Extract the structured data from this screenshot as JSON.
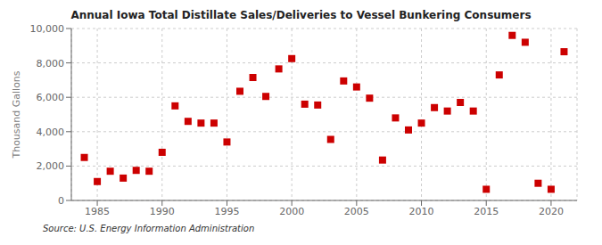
{
  "chart_data": {
    "type": "scatter",
    "title": "Annual Iowa Total Distillate Sales/Deliveries to Vessel Bunkering Consumers",
    "ylabel": "Thousand Gallons",
    "annotations": [
      "Source: U.S. Energy Information Administration"
    ],
    "x": [
      1984,
      1985,
      1986,
      1987,
      1988,
      1989,
      1990,
      1991,
      1992,
      1993,
      1994,
      1995,
      1996,
      1997,
      1998,
      1999,
      2000,
      2001,
      2002,
      2003,
      2004,
      2005,
      2006,
      2007,
      2008,
      2009,
      2010,
      2011,
      2012,
      2013,
      2014,
      2015,
      2016,
      2017,
      2018,
      2019,
      2020,
      2021
    ],
    "values": [
      2500,
      1100,
      1700,
      1300,
      1750,
      1700,
      2800,
      5500,
      4600,
      4500,
      4500,
      3400,
      6350,
      7150,
      6050,
      7650,
      8250,
      5600,
      5550,
      3550,
      6950,
      6600,
      5950,
      2350,
      4800,
      4100,
      4500,
      5400,
      5200,
      5700,
      5200,
      650,
      7300,
      9600,
      9200,
      1000,
      650,
      8650
    ],
    "color": "#cc0000",
    "marker": "square",
    "xlim": [
      1983,
      2022
    ],
    "ylim": [
      0,
      10000
    ],
    "xticks": [
      1985,
      1990,
      1995,
      2000,
      2005,
      2010,
      2015,
      2020
    ],
    "yticks": [
      0,
      {
        "value": 2000,
        "label": "2,000"
      },
      {
        "value": 4000,
        "label": "4,000"
      },
      {
        "value": 6000,
        "label": "6,000"
      },
      {
        "value": 8000,
        "label": "8,000"
      },
      {
        "value": 10000,
        "label": "10,000"
      }
    ],
    "grid": true
  }
}
